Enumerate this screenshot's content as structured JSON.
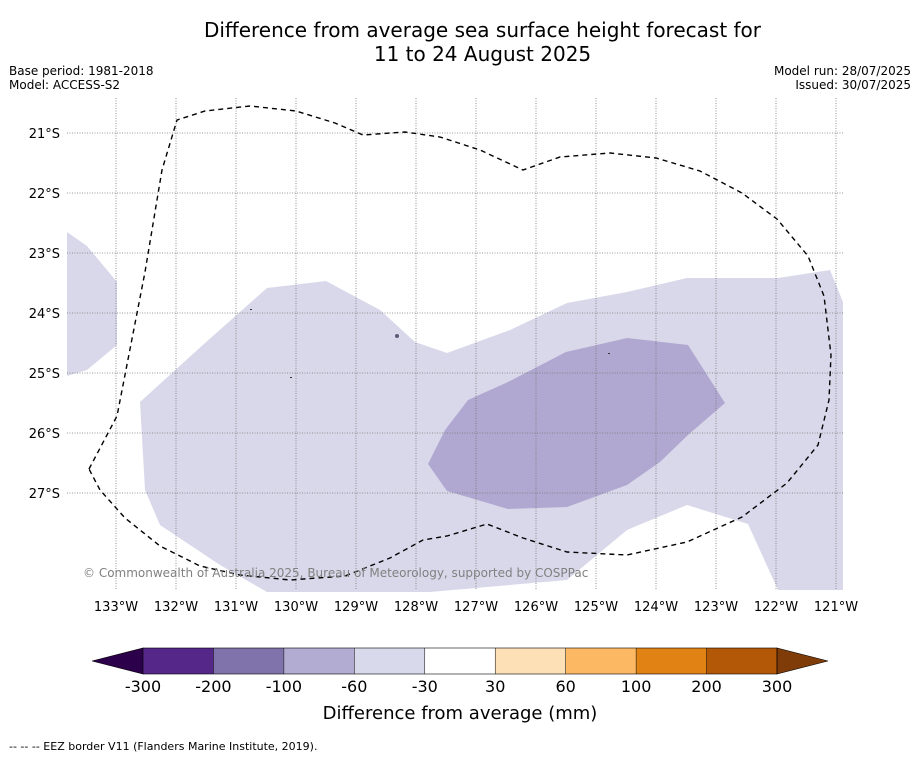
{
  "title": {
    "line1": "Difference from average sea surface height forecast for",
    "line2": "11 to 24 August 2025"
  },
  "meta": {
    "base_period": "Base period: 1981-2018",
    "model": "Model: ACCESS-S2",
    "model_run": "Model run: 28/07/2025",
    "issued": "Issued: 30/07/2025"
  },
  "map": {
    "lat_labels": [
      "21°S",
      "22°S",
      "23°S",
      "24°S",
      "25°S",
      "26°S",
      "27°S"
    ],
    "lon_labels": [
      "133°W",
      "132°W",
      "131°W",
      "130°W",
      "129°W",
      "128°W",
      "127°W",
      "126°W",
      "125°W",
      "124°W",
      "123°W",
      "122°W",
      "121°W"
    ],
    "copyright": "© Commonwealth of Australia 2025, Bureau of Meteorology, supported by COSPPac",
    "anomaly_classes": [
      {
        "range": "-30 to -60 mm",
        "color": "#d9d8ea"
      },
      {
        "range": "-60 to -100 mm",
        "color": "#b0a8d0"
      }
    ]
  },
  "colorbar": {
    "title": "Difference from average (mm)",
    "tick_labels": [
      "-300",
      "-200",
      "-100",
      "-60",
      "-30",
      "30",
      "60",
      "100",
      "200",
      "300"
    ],
    "under_color": "#2d004b",
    "over_color": "#7f3b08",
    "colors": [
      "#542788",
      "#8073ac",
      "#b2abd2",
      "#d8daeb",
      "#ffffff",
      "#fee0b6",
      "#fdb863",
      "#e08214",
      "#b35806"
    ]
  },
  "footnote": "--  --  -- EEZ border V11 (Flanders Marine Institute, 2019)."
}
